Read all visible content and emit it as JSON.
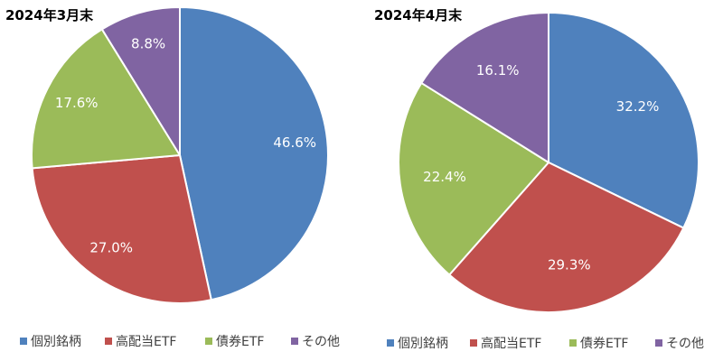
{
  "chart_data": [
    {
      "type": "pie",
      "title": "2024年3月末",
      "categories": [
        "個別銘柄",
        "高配当ETF",
        "債券ETF",
        "その他"
      ],
      "values": [
        46.6,
        27.0,
        17.6,
        8.8
      ],
      "value_labels": [
        "46.6%",
        "27.0%",
        "17.6%",
        "8.8%"
      ],
      "colors": [
        "#4F81BD",
        "#C0504D",
        "#9BBB59",
        "#8064A2"
      ],
      "start": "12 o'clock",
      "direction": "clockwise",
      "legend_position": "bottom"
    },
    {
      "type": "pie",
      "title": "2024年4月末",
      "categories": [
        "個別銘柄",
        "高配当ETF",
        "債券ETF",
        "その他"
      ],
      "values": [
        32.2,
        29.3,
        22.4,
        16.1
      ],
      "value_labels": [
        "32.2%",
        "29.3%",
        "22.4%",
        "16.1%"
      ],
      "colors": [
        "#4F81BD",
        "#C0504D",
        "#9BBB59",
        "#8064A2"
      ],
      "start": "12 o'clock",
      "direction": "clockwise",
      "legend_position": "bottom"
    }
  ]
}
